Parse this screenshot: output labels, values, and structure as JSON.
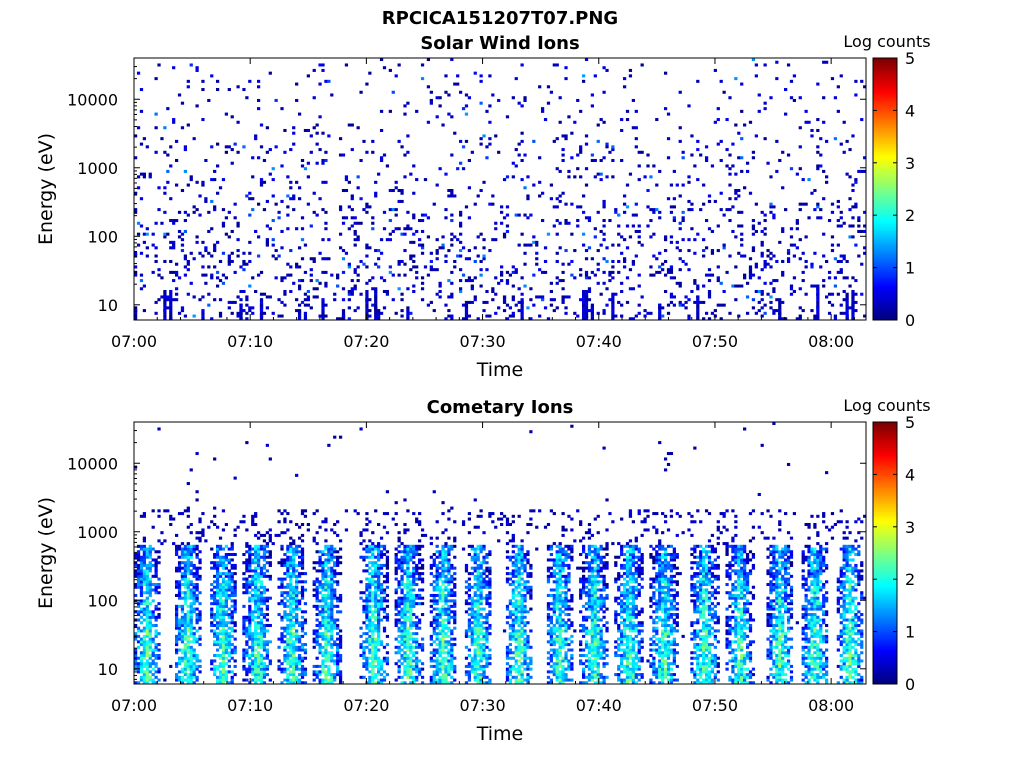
{
  "figure": {
    "title": "RPCICA151207T07.PNG"
  },
  "chart_data": [
    {
      "type": "heatmap",
      "title": "Solar Wind Ions",
      "xlabel": "Time",
      "ylabel": "Energy (eV)",
      "x_tick_labels": [
        "07:00",
        "07:10",
        "07:20",
        "07:30",
        "07:40",
        "07:50",
        "08:00"
      ],
      "x_ticks_min": [
        0,
        10,
        20,
        30,
        40,
        50,
        60
      ],
      "xlim_min": [
        0,
        63
      ],
      "y_scale": "log",
      "y_tick_labels": [
        "10",
        "100",
        "1000",
        "10000"
      ],
      "y_ticks": [
        10,
        100,
        1000,
        10000
      ],
      "ylim": [
        6,
        40000
      ],
      "colorbar": {
        "label": "Log counts",
        "range": [
          0,
          5
        ],
        "tick_labels": [
          "0",
          "1",
          "2",
          "3",
          "4",
          "5"
        ],
        "colormap": "jet"
      },
      "pattern": "sparse low counts (log ~0-1) scattered across all energies, denser below 300 eV",
      "seed": 11
    },
    {
      "type": "heatmap",
      "title": "Cometary Ions",
      "xlabel": "Time",
      "ylabel": "Energy (eV)",
      "x_tick_labels": [
        "07:00",
        "07:10",
        "07:20",
        "07:30",
        "07:40",
        "07:50",
        "08:00"
      ],
      "x_ticks_min": [
        0,
        10,
        20,
        30,
        40,
        50,
        60
      ],
      "xlim_min": [
        0,
        63
      ],
      "y_scale": "log",
      "y_tick_labels": [
        "10",
        "100",
        "1000",
        "10000"
      ],
      "y_ticks": [
        10,
        100,
        1000,
        10000
      ],
      "ylim": [
        6,
        40000
      ],
      "colorbar": {
        "label": "Log counts",
        "range": [
          0,
          5
        ],
        "tick_labels": [
          "0",
          "1",
          "2",
          "3",
          "4",
          "5"
        ],
        "colormap": "jet"
      },
      "pattern": "periodic vertical bursts below ~600 eV with peak log counts ~2-3",
      "burst_centers_min": [
        1,
        4.5,
        7.5,
        10.5,
        13.5,
        16.5,
        20.5,
        23.5,
        26.5,
        29.5,
        33,
        36.5,
        39.5,
        42.5,
        45.5,
        49,
        52,
        55.5,
        58.5,
        61.5
      ],
      "burst_half_width_min": 1.2,
      "burst_energy_range": [
        6,
        600
      ],
      "seed": 23
    }
  ]
}
